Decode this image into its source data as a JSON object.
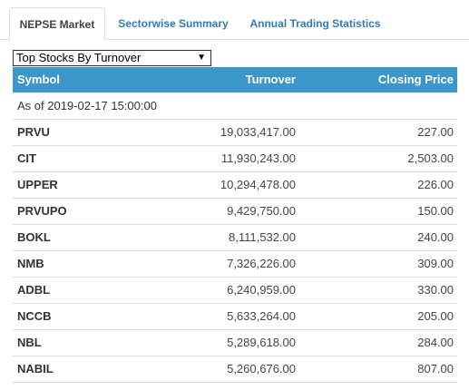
{
  "tabs": [
    {
      "label": "NEPSE Market",
      "active": true
    },
    {
      "label": "Sectorwise Summary",
      "active": false
    },
    {
      "label": "Annual Trading Statistics",
      "active": false
    }
  ],
  "select": {
    "value": "Top Stocks By Turnover"
  },
  "table": {
    "headers": {
      "symbol": "Symbol",
      "turnover": "Turnover",
      "closing": "Closing Price"
    },
    "as_of": "As of 2019-02-17 15:00:00",
    "rows": [
      {
        "symbol": "PRVU",
        "turnover": "19,033,417.00",
        "closing": "227.00"
      },
      {
        "symbol": "CIT",
        "turnover": "11,930,243.00",
        "closing": "2,503.00"
      },
      {
        "symbol": "UPPER",
        "turnover": "10,294,478.00",
        "closing": "226.00"
      },
      {
        "symbol": "PRVUPO",
        "turnover": "9,429,750.00",
        "closing": "150.00"
      },
      {
        "symbol": "BOKL",
        "turnover": "8,111,532.00",
        "closing": "240.00"
      },
      {
        "symbol": "NMB",
        "turnover": "7,326,226.00",
        "closing": "309.00"
      },
      {
        "symbol": "ADBL",
        "turnover": "6,240,959.00",
        "closing": "330.00"
      },
      {
        "symbol": "NCCB",
        "turnover": "5,633,264.00",
        "closing": "205.00"
      },
      {
        "symbol": "NBL",
        "turnover": "5,289,618.00",
        "closing": "284.00"
      },
      {
        "symbol": "NABIL",
        "turnover": "5,260,676.00",
        "closing": "807.00"
      }
    ]
  },
  "colors": {
    "header_bg": "#3d96c9",
    "tab_link": "#337ab7"
  }
}
